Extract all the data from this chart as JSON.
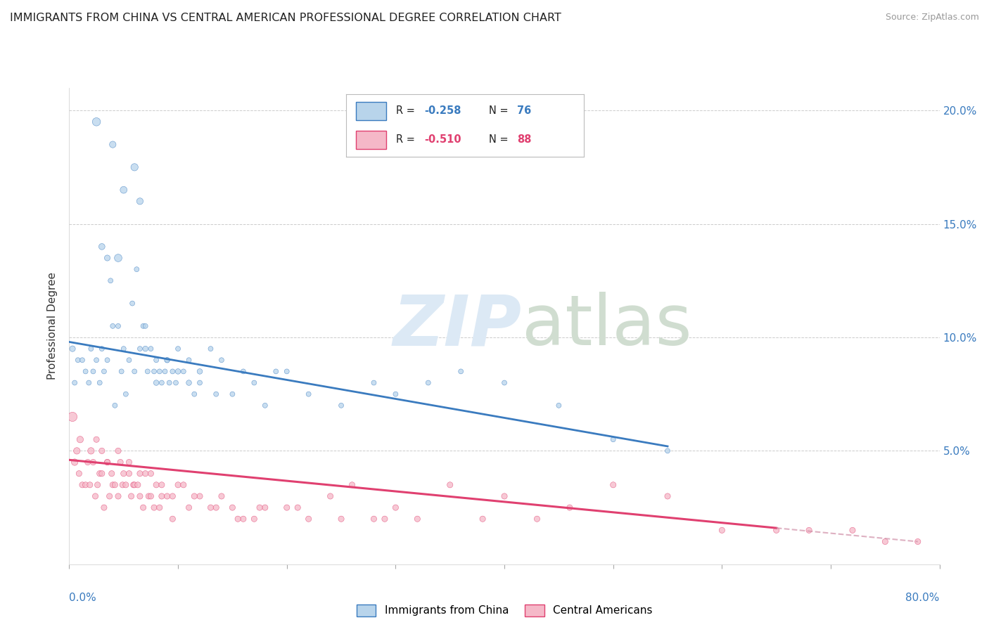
{
  "title": "IMMIGRANTS FROM CHINA VS CENTRAL AMERICAN PROFESSIONAL DEGREE CORRELATION CHART",
  "source": "Source: ZipAtlas.com",
  "ylabel": "Professional Degree",
  "legend_china": "Immigrants from China",
  "legend_central": "Central Americans",
  "china_R": -0.258,
  "china_N": 76,
  "central_R": -0.51,
  "central_N": 88,
  "china_color": "#b8d4eb",
  "central_color": "#f5b8c8",
  "china_line_color": "#3a7bbf",
  "central_line_color": "#e04070",
  "central_line_dash_color": "#d090a8",
  "xlim": [
    0.0,
    80.0
  ],
  "ylim": [
    0.0,
    21.0
  ],
  "yticks": [
    0.0,
    5.0,
    10.0,
    15.0,
    20.0
  ],
  "china_trend_start_y": 9.8,
  "china_trend_end_y": 5.2,
  "china_trend_x_end": 55.0,
  "central_trend_start_y": 4.6,
  "central_trend_end_y": 1.0,
  "central_trend_x_end": 78.0,
  "central_dash_x_start": 65.0,
  "china_x": [
    0.3,
    0.5,
    0.8,
    1.2,
    1.5,
    1.8,
    2.0,
    2.2,
    2.5,
    2.8,
    3.0,
    3.2,
    3.5,
    3.8,
    4.0,
    4.2,
    4.5,
    4.8,
    5.0,
    5.2,
    5.5,
    5.8,
    6.0,
    6.2,
    6.5,
    6.8,
    7.0,
    7.2,
    7.5,
    7.8,
    8.0,
    8.3,
    8.5,
    8.8,
    9.0,
    9.2,
    9.5,
    9.8,
    10.0,
    10.5,
    11.0,
    11.5,
    12.0,
    13.0,
    13.5,
    14.0,
    15.0,
    16.0,
    17.0,
    18.0,
    19.0,
    20.0,
    22.0,
    25.0,
    28.0,
    30.0,
    33.0,
    36.0,
    40.0,
    45.0,
    50.0,
    55.0,
    4.5,
    5.0,
    3.0,
    3.5,
    4.0,
    2.5,
    6.0,
    6.5,
    7.0,
    8.0,
    9.0,
    10.0,
    11.0,
    12.0
  ],
  "china_y": [
    9.5,
    8.0,
    9.0,
    9.0,
    8.5,
    8.0,
    9.5,
    8.5,
    9.0,
    8.0,
    9.5,
    8.5,
    9.0,
    12.5,
    10.5,
    7.0,
    10.5,
    8.5,
    9.5,
    7.5,
    9.0,
    11.5,
    8.5,
    13.0,
    9.5,
    10.5,
    10.5,
    8.5,
    9.5,
    8.5,
    9.0,
    8.5,
    8.0,
    8.5,
    9.0,
    8.0,
    8.5,
    8.0,
    9.5,
    8.5,
    9.0,
    7.5,
    8.0,
    9.5,
    7.5,
    9.0,
    7.5,
    8.5,
    8.0,
    7.0,
    8.5,
    8.5,
    7.5,
    7.0,
    8.0,
    7.5,
    8.0,
    8.5,
    8.0,
    7.0,
    5.5,
    5.0,
    13.5,
    16.5,
    14.0,
    13.5,
    18.5,
    19.5,
    17.5,
    16.0,
    9.5,
    8.0,
    9.0,
    8.5,
    8.0,
    8.5
  ],
  "china_sizes": [
    35,
    25,
    25,
    25,
    25,
    25,
    25,
    25,
    25,
    25,
    25,
    25,
    25,
    25,
    25,
    25,
    25,
    25,
    25,
    25,
    25,
    25,
    25,
    25,
    25,
    25,
    25,
    25,
    25,
    25,
    25,
    25,
    25,
    25,
    25,
    25,
    25,
    25,
    25,
    25,
    25,
    25,
    25,
    25,
    25,
    25,
    25,
    25,
    25,
    25,
    25,
    25,
    25,
    25,
    25,
    25,
    25,
    25,
    25,
    25,
    25,
    25,
    60,
    50,
    40,
    35,
    45,
    70,
    55,
    45,
    30,
    30,
    30,
    30,
    30,
    30
  ],
  "central_x": [
    0.3,
    0.5,
    0.7,
    0.9,
    1.0,
    1.2,
    1.5,
    1.7,
    1.9,
    2.0,
    2.2,
    2.4,
    2.6,
    2.8,
    3.0,
    3.2,
    3.5,
    3.7,
    3.9,
    4.0,
    4.2,
    4.5,
    4.7,
    4.9,
    5.0,
    5.2,
    5.5,
    5.7,
    5.9,
    6.0,
    6.3,
    6.5,
    6.8,
    7.0,
    7.3,
    7.5,
    7.8,
    8.0,
    8.3,
    8.5,
    9.0,
    9.5,
    10.0,
    11.0,
    12.0,
    13.0,
    14.0,
    15.0,
    16.0,
    17.0,
    18.0,
    20.0,
    22.0,
    24.0,
    26.0,
    28.0,
    30.0,
    32.0,
    35.0,
    38.0,
    40.0,
    43.0,
    46.0,
    50.0,
    55.0,
    60.0,
    65.0,
    68.0,
    72.0,
    75.0,
    78.0,
    2.5,
    3.0,
    3.5,
    4.5,
    5.5,
    6.5,
    7.5,
    8.5,
    9.5,
    10.5,
    11.5,
    13.5,
    15.5,
    17.5,
    21.0,
    25.0,
    29.0
  ],
  "central_y": [
    6.5,
    4.5,
    5.0,
    4.0,
    5.5,
    3.5,
    3.5,
    4.5,
    3.5,
    5.0,
    4.5,
    3.0,
    3.5,
    4.0,
    4.0,
    2.5,
    4.5,
    3.0,
    4.0,
    3.5,
    3.5,
    3.0,
    4.5,
    3.5,
    4.0,
    3.5,
    4.0,
    3.0,
    3.5,
    3.5,
    3.5,
    3.0,
    2.5,
    4.0,
    3.0,
    3.0,
    2.5,
    3.5,
    2.5,
    3.0,
    3.0,
    2.0,
    3.5,
    2.5,
    3.0,
    2.5,
    3.0,
    2.5,
    2.0,
    2.0,
    2.5,
    2.5,
    2.0,
    3.0,
    3.5,
    2.0,
    2.5,
    2.0,
    3.5,
    2.0,
    3.0,
    2.0,
    2.5,
    3.5,
    3.0,
    1.5,
    1.5,
    1.5,
    1.5,
    1.0,
    1.0,
    5.5,
    5.0,
    4.5,
    5.0,
    4.5,
    4.0,
    4.0,
    3.5,
    3.0,
    3.5,
    3.0,
    2.5,
    2.0,
    2.5,
    2.5,
    2.0,
    2.0
  ],
  "central_sizes": [
    90,
    45,
    45,
    35,
    45,
    35,
    35,
    35,
    35,
    45,
    35,
    35,
    35,
    35,
    35,
    35,
    35,
    35,
    35,
    35,
    35,
    35,
    35,
    35,
    35,
    35,
    35,
    35,
    35,
    35,
    35,
    35,
    35,
    35,
    35,
    35,
    35,
    35,
    35,
    35,
    35,
    35,
    35,
    35,
    35,
    35,
    35,
    35,
    35,
    35,
    35,
    35,
    35,
    35,
    35,
    35,
    35,
    35,
    35,
    35,
    35,
    35,
    35,
    35,
    35,
    35,
    35,
    35,
    35,
    35,
    35,
    35,
    35,
    35,
    35,
    35,
    35,
    35,
    35,
    35,
    35,
    35,
    35,
    35,
    35,
    35,
    35,
    35
  ]
}
